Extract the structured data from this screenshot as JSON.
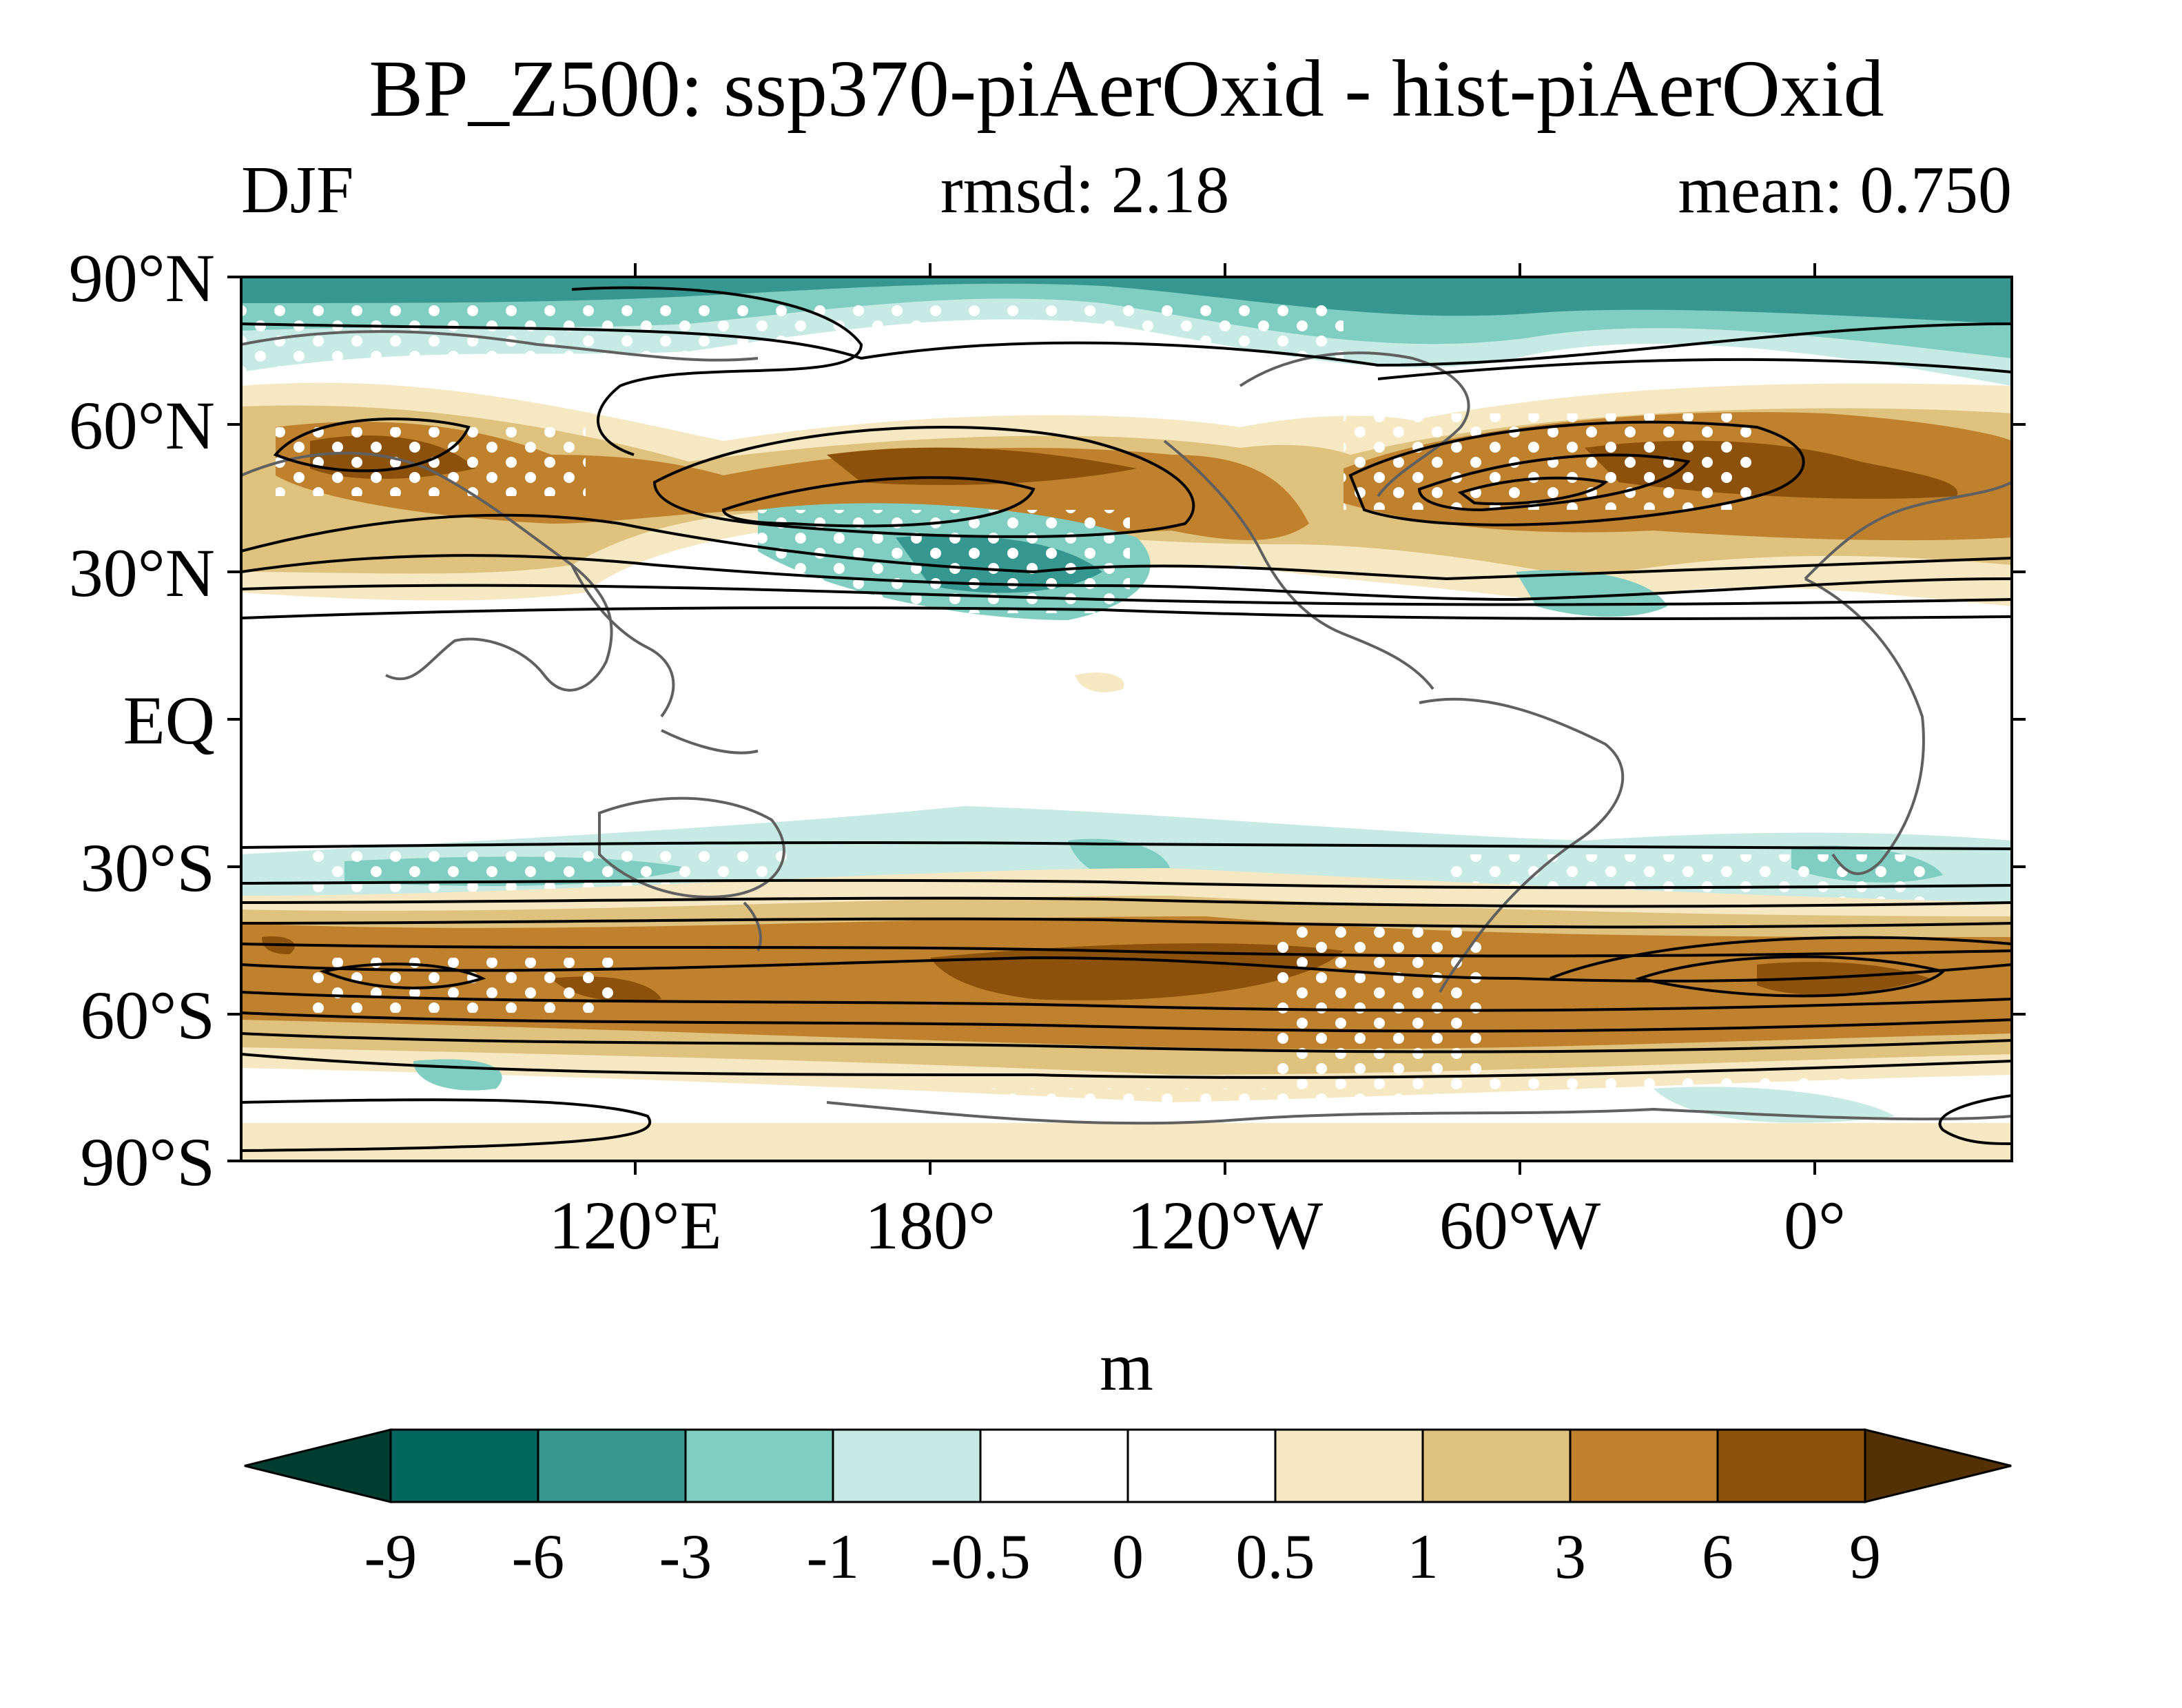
{
  "title": "BP_Z500: ssp370-piAerOxid - hist-piAerOxid",
  "subtitle": {
    "season": "DJF",
    "rmsd": "rmsd: 2.18",
    "mean": "mean: 0.750"
  },
  "axes": {
    "lat_labels": [
      "90°N",
      "60°N",
      "30°N",
      "EQ",
      "30°S",
      "60°S",
      "90°S"
    ],
    "lon_labels": [
      "120°E",
      "180°",
      "120°W",
      "60°W",
      "0°"
    ],
    "lat_range": [
      -90,
      90
    ],
    "lon_range_center": 210,
    "projection": "cylindrical-equidistant"
  },
  "colorbar": {
    "units": "m",
    "levels": [
      "-9",
      "-6",
      "-3",
      "-1",
      "-0.5",
      "0",
      "0.5",
      "1",
      "3",
      "6",
      "9"
    ],
    "colors": [
      "#003d30",
      "#01665e",
      "#35978f",
      "#80cdc1",
      "#c7eae5",
      "#ffffff",
      "#ffffff",
      "#f6e8c3",
      "#dfc27d",
      "#bf812d",
      "#8c510a",
      "#543005"
    ],
    "extend": "both"
  },
  "map": {
    "coast_color": "#606060",
    "contour_color": "#000000",
    "stipple_color": "#ffffff"
  }
}
